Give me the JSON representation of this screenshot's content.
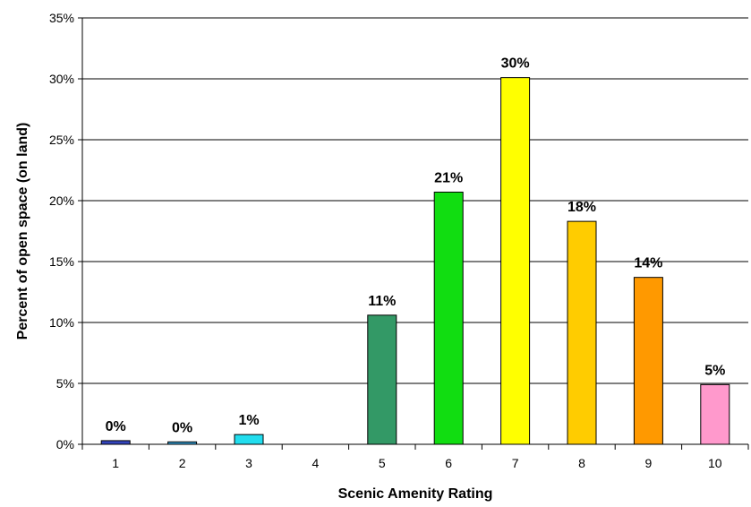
{
  "chart_data": {
    "type": "bar",
    "title": "",
    "xlabel": "Scenic Amenity Rating",
    "ylabel": "Percent of open space (on land)",
    "categories": [
      "1",
      "2",
      "3",
      "4",
      "5",
      "6",
      "7",
      "8",
      "9",
      "10"
    ],
    "values": [
      0.3,
      0.2,
      0.8,
      0,
      10.6,
      20.7,
      30.1,
      18.3,
      13.7,
      4.9
    ],
    "data_labels": [
      "0%",
      "0%",
      "1%",
      "",
      "11%",
      "21%",
      "30%",
      "18%",
      "14%",
      "5%"
    ],
    "colors": [
      "#3344bb",
      "#3399cc",
      "#22ddee",
      "#cccccc",
      "#339966",
      "#11dd11",
      "#ffff00",
      "#ffcc00",
      "#ff9900",
      "#ff99cc"
    ],
    "ylim": [
      0,
      35
    ],
    "yticks": [
      0,
      5,
      10,
      15,
      20,
      25,
      30,
      35
    ],
    "ytick_labels": [
      "0%",
      "5%",
      "10%",
      "15%",
      "20%",
      "25%",
      "30%",
      "35%"
    ],
    "grid": true,
    "legend": "none"
  }
}
